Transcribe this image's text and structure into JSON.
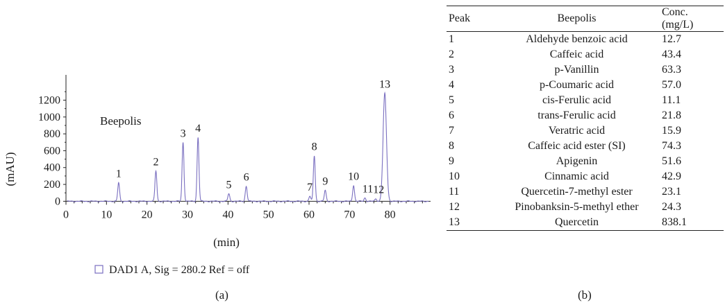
{
  "chart_data": [
    {
      "type": "line",
      "panel": "(a)",
      "title": "",
      "annotation": "Beepolis",
      "xlabel": "(min)",
      "ylabel": "(mAU)",
      "xlim": [
        0,
        90
      ],
      "ylim": [
        -30,
        1500
      ],
      "x_ticks": [
        0,
        10,
        20,
        30,
        40,
        50,
        60,
        70,
        80
      ],
      "y_ticks": [
        0,
        200,
        400,
        600,
        800,
        1000,
        1200
      ],
      "legend": {
        "label": "DAD1 A, Sig = 280.2 Ref = off",
        "position": "bottom-left"
      },
      "grid": false,
      "series": [
        {
          "color": "#7a6fc0",
          "peaks": [
            {
              "label": "1",
              "rt": 13.0,
              "height": 220
            },
            {
              "label": "2",
              "rt": 22.2,
              "height": 360
            },
            {
              "label": "3",
              "rt": 28.9,
              "height": 700
            },
            {
              "label": "4",
              "rt": 32.6,
              "height": 760
            },
            {
              "label": "5",
              "rt": 40.2,
              "height": 90
            },
            {
              "label": "6",
              "rt": 44.5,
              "height": 180
            },
            {
              "label": "7",
              "rt": 60.2,
              "height": 60
            },
            {
              "label": "8",
              "rt": 61.3,
              "height": 540
            },
            {
              "label": "9",
              "rt": 64.0,
              "height": 130
            },
            {
              "label": "10",
              "rt": 71.0,
              "height": 190
            },
            {
              "label": "11",
              "rt": 73.8,
              "height": 40
            },
            {
              "label": "12",
              "rt": 76.5,
              "height": 30
            },
            {
              "label": "13",
              "rt": 78.7,
              "height": 1280
            }
          ]
        }
      ]
    },
    {
      "type": "table",
      "panel": "(b)",
      "columns": [
        "Peak",
        "Beepolis",
        "Conc. (mg/L)"
      ],
      "rows": [
        [
          "1",
          "Aldehyde benzoic acid",
          "12.7"
        ],
        [
          "2",
          "Caffeic acid",
          "43.4"
        ],
        [
          "3",
          "p-Vanillin",
          "63.3"
        ],
        [
          "4",
          "p-Coumaric acid",
          "57.0"
        ],
        [
          "5",
          "cis-Ferulic acid",
          "11.1"
        ],
        [
          "6",
          "trans-Ferulic acid",
          "21.8"
        ],
        [
          "7",
          "Veratric acid",
          "15.9"
        ],
        [
          "8",
          "Caffeic acid ester (SI)",
          "74.3"
        ],
        [
          "9",
          "Apigenin",
          "51.6"
        ],
        [
          "10",
          "Cinnamic acid",
          "42.9"
        ],
        [
          "11",
          "Quercetin-7-methyl ester",
          "23.1"
        ],
        [
          "12",
          "Pinobanksin-5-methyl ether",
          "24.3"
        ],
        [
          "13",
          "Quercetin",
          "838.1"
        ]
      ]
    }
  ],
  "captions": {
    "left": "(a)",
    "right": "(b)"
  }
}
